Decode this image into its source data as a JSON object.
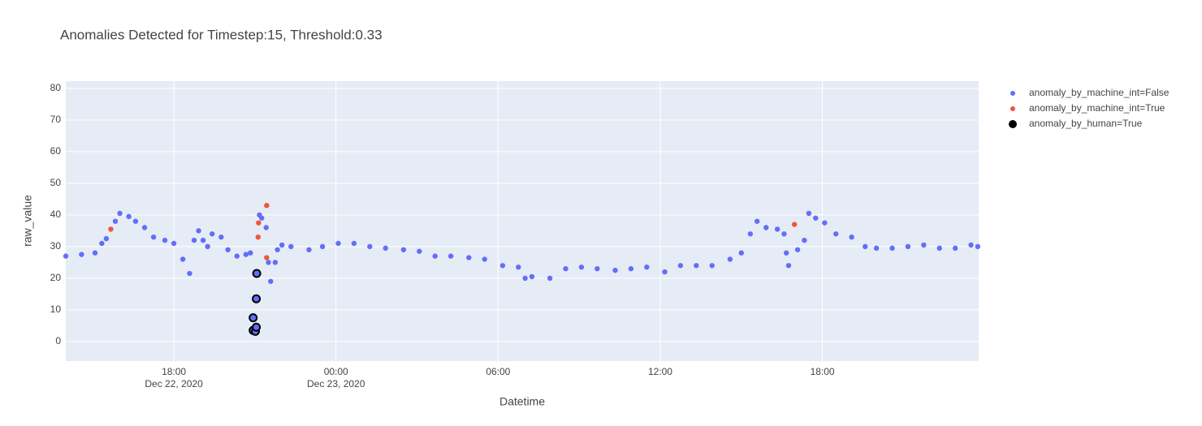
{
  "chart_data": {
    "type": "scatter",
    "title": "Anomalies Detected for Timestep:15, Threshold:0.33",
    "x_label": "Datetime",
    "y_label": "raw_value",
    "xlim": [
      "2020-12-22 14:00",
      "2020-12-23 23:47"
    ],
    "ylim": [
      -6.2,
      82.3
    ],
    "yticks": [
      0,
      10,
      20,
      30,
      40,
      50,
      60,
      70,
      80
    ],
    "xticks": [
      {
        "value": "2020-12-22 18:00",
        "label": "18:00",
        "label2": "Dec 22, 2020"
      },
      {
        "value": "2020-12-23 00:00",
        "label": "00:00",
        "label2": "Dec 23, 2020"
      },
      {
        "value": "2020-12-23 06:00",
        "label": "06:00"
      },
      {
        "value": "2020-12-23 12:00",
        "label": "12:00"
      },
      {
        "value": "2020-12-23 18:00",
        "label": "18:00"
      }
    ],
    "grid": true,
    "legend": "right",
    "series": [
      {
        "name": "anomaly_by_machine_int=False",
        "color": "#636efa",
        "x": [
          "2020-12-22 14:00",
          "2020-12-22 14:35",
          "2020-12-22 15:05",
          "2020-12-22 15:20",
          "2020-12-22 15:30",
          "2020-12-22 15:50",
          "2020-12-22 16:00",
          "2020-12-22 16:20",
          "2020-12-22 16:35",
          "2020-12-22 16:55",
          "2020-12-22 17:15",
          "2020-12-22 17:40",
          "2020-12-22 18:00",
          "2020-12-22 18:20",
          "2020-12-22 18:35",
          "2020-12-22 18:45",
          "2020-12-22 18:55",
          "2020-12-22 19:05",
          "2020-12-22 19:15",
          "2020-12-22 19:25",
          "2020-12-22 19:45",
          "2020-12-22 20:00",
          "2020-12-22 20:20",
          "2020-12-22 20:40",
          "2020-12-22 20:50",
          "2020-12-22 21:10",
          "2020-12-22 21:15",
          "2020-12-22 21:25",
          "2020-12-22 21:30",
          "2020-12-22 21:35",
          "2020-12-22 21:45",
          "2020-12-22 21:50",
          "2020-12-22 22:00",
          "2020-12-22 22:20",
          "2020-12-22 23:00",
          "2020-12-22 23:30",
          "2020-12-23 00:05",
          "2020-12-23 00:40",
          "2020-12-23 01:15",
          "2020-12-23 01:50",
          "2020-12-23 02:30",
          "2020-12-23 03:05",
          "2020-12-23 03:40",
          "2020-12-23 04:15",
          "2020-12-23 04:55",
          "2020-12-23 05:30",
          "2020-12-23 06:10",
          "2020-12-23 06:45",
          "2020-12-23 07:00",
          "2020-12-23 07:15",
          "2020-12-23 07:55",
          "2020-12-23 08:30",
          "2020-12-23 09:05",
          "2020-12-23 09:40",
          "2020-12-23 10:20",
          "2020-12-23 10:55",
          "2020-12-23 11:30",
          "2020-12-23 12:10",
          "2020-12-23 12:45",
          "2020-12-23 13:20",
          "2020-12-23 13:55",
          "2020-12-23 14:35",
          "2020-12-23 15:00",
          "2020-12-23 15:20",
          "2020-12-23 15:35",
          "2020-12-23 15:55",
          "2020-12-23 16:20",
          "2020-12-23 16:35",
          "2020-12-23 16:40",
          "2020-12-23 16:45",
          "2020-12-23 17:05",
          "2020-12-23 17:20",
          "2020-12-23 17:30",
          "2020-12-23 17:45",
          "2020-12-23 18:05",
          "2020-12-23 18:30",
          "2020-12-23 19:05",
          "2020-12-23 19:35",
          "2020-12-23 20:00",
          "2020-12-23 20:35",
          "2020-12-23 21:10",
          "2020-12-23 21:45",
          "2020-12-23 22:20",
          "2020-12-23 22:55",
          "2020-12-23 23:30",
          "2020-12-23 23:45"
        ],
        "values": [
          27,
          27.5,
          28,
          31,
          32.5,
          38,
          40.5,
          39.5,
          38,
          36,
          33,
          32,
          31,
          26,
          21.5,
          32,
          35,
          32,
          30,
          34,
          33,
          29,
          27,
          27.5,
          28,
          40,
          39,
          36,
          25,
          19,
          25,
          29,
          30.5,
          30,
          29,
          30,
          31,
          31,
          30,
          29.5,
          29,
          28.5,
          27,
          27,
          26.5,
          26,
          24,
          23.5,
          20,
          20.5,
          20,
          23,
          23.5,
          23,
          22.5,
          23,
          23.5,
          22,
          24,
          24,
          24,
          26,
          28,
          34,
          38,
          36,
          35.5,
          34,
          28,
          24,
          29,
          32,
          40.5,
          39,
          37.5,
          34,
          33,
          30,
          29.5,
          29.5,
          30,
          30.5,
          29.5,
          29.5,
          30.5,
          30
        ]
      },
      {
        "name": "anomaly_by_machine_int=True",
        "color": "#ef553b",
        "x": [
          "2020-12-22 15:40",
          "2020-12-22 21:07",
          "2020-12-22 21:08",
          "2020-12-22 21:26",
          "2020-12-22 21:26",
          "2020-12-23 16:58"
        ],
        "values": [
          35.5,
          33,
          37.5,
          43,
          26.5,
          37
        ]
      },
      {
        "name": "anomaly_by_human=True",
        "color": "#000000",
        "x": [
          "2020-12-22 20:56",
          "2020-12-22 20:56",
          "2020-12-22 21:01",
          "2020-12-22 21:03",
          "2020-12-22 21:03",
          "2020-12-22 21:04"
        ],
        "values": [
          7.5,
          3.5,
          3.2,
          4.5,
          13.5,
          21.5
        ]
      }
    ]
  }
}
